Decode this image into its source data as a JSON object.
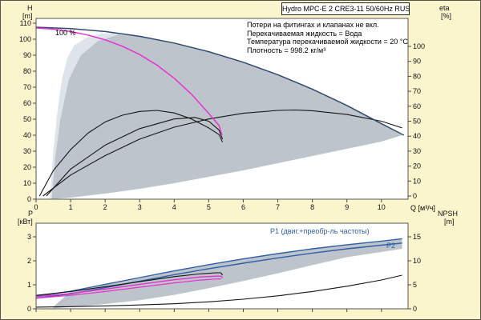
{
  "title_box": "Hydro MPC-E 2 CRE3-11 50/60Hz RUS",
  "info_lines": [
    "Потери на фитингах и клапанах не вкл.",
    "Перекачиваемая жидкость = Вода",
    "Температура перекачиваемой жидкости = 20 °C",
    "Плотность = 998.2 кг/м³"
  ],
  "annotations": {
    "speed_label": "100 %",
    "p1_label": "P1 (двиг.+преобр-ль частоты)",
    "p2_label": "P2"
  },
  "colors": {
    "background": "#fbf5ce",
    "envelope_gray": "#b3bac3",
    "envelope_pale": "#dde3ea",
    "magenta": "#e532cf",
    "navy": "#2f4a6e",
    "blue": "#2f5fa8",
    "black": "#141414"
  },
  "axes": {
    "H": {
      "name": "H",
      "unit": "[m]",
      "ticks": [
        0,
        10,
        20,
        30,
        40,
        50,
        60,
        70,
        80,
        90,
        100,
        110
      ]
    },
    "eta": {
      "name": "eta",
      "unit": "[%]",
      "ticks": [
        0,
        10,
        20,
        30,
        40,
        50,
        60,
        70,
        80,
        90,
        100
      ]
    },
    "Q": {
      "label": "Q [м³/ч]",
      "ticks": [
        0,
        1,
        2,
        3,
        4,
        5,
        6,
        7,
        8,
        9,
        10
      ]
    },
    "P": {
      "name": "P",
      "unit": "[кВт]",
      "ticks": [
        0,
        1,
        2,
        3
      ]
    },
    "NPSH": {
      "name": "NPSH",
      "unit": "[m]",
      "ticks": [
        0,
        5,
        10,
        15
      ]
    }
  },
  "chart_data": [
    {
      "id": "head-efficiency-chart",
      "type": "line",
      "x_label": "Q [м³/ч]",
      "x_range": [
        0,
        10.77
      ],
      "left_axis": {
        "label": "H [m]",
        "range": [
          0,
          113
        ]
      },
      "right_axis": {
        "label": "eta [%]",
        "range": [
          0,
          100
        ]
      },
      "series": [
        {
          "name": "duty-pale-region",
          "kind": "area",
          "axis": "H",
          "color": "#dde3ea",
          "opacity": 0.95,
          "points": [
            [
              0.4,
              0
            ],
            [
              0.5,
              30
            ],
            [
              0.62,
              55
            ],
            [
              0.75,
              75
            ],
            [
              0.9,
              88
            ],
            [
              1.1,
              96
            ],
            [
              1.45,
              101
            ],
            [
              1.9,
              103.5
            ],
            [
              2.4,
              104
            ],
            [
              2.4,
              103
            ],
            [
              1.8,
              99
            ],
            [
              1.3,
              90
            ],
            [
              0.95,
              75
            ],
            [
              0.7,
              50
            ],
            [
              0.55,
              25
            ],
            [
              0.45,
              0
            ]
          ]
        },
        {
          "name": "operating-envelope",
          "kind": "area",
          "axis": "H",
          "color": "#b3bac3",
          "opacity": 0.85,
          "points": [
            [
              0.45,
              0
            ],
            [
              0.55,
              25
            ],
            [
              0.7,
              50
            ],
            [
              0.95,
              75
            ],
            [
              1.3,
              90
            ],
            [
              1.8,
              99
            ],
            [
              2.4,
              103
            ],
            [
              3,
              101.6
            ],
            [
              4,
              97.4
            ],
            [
              5,
              92
            ],
            [
              6,
              85.4
            ],
            [
              7,
              77.6
            ],
            [
              8,
              68.6
            ],
            [
              9,
              58.4
            ],
            [
              10,
              47
            ],
            [
              10.6,
              40
            ],
            [
              10,
              36
            ],
            [
              9,
              31.5
            ],
            [
              8,
              27
            ],
            [
              7,
              22.5
            ],
            [
              6,
              18
            ],
            [
              5,
              14
            ],
            [
              4,
              10
            ],
            [
              3,
              6.5
            ],
            [
              2,
              3.5
            ],
            [
              1,
              1
            ]
          ]
        },
        {
          "name": "eta-pump-1",
          "kind": "line",
          "axis": "eta",
          "color": "#141414",
          "width": 1.1,
          "points": [
            [
              0.1,
              0
            ],
            [
              0.5,
              17
            ],
            [
              1,
              31
            ],
            [
              1.5,
              42
            ],
            [
              2,
              49.5
            ],
            [
              2.5,
              54
            ],
            [
              3,
              56.5
            ],
            [
              3.5,
              57.2
            ],
            [
              4,
              55.5
            ],
            [
              4.5,
              51.5
            ],
            [
              5,
              45.5
            ],
            [
              5.3,
              41
            ],
            [
              5.4,
              36
            ]
          ]
        },
        {
          "name": "eta-pump-1b",
          "kind": "line",
          "axis": "eta",
          "color": "#141414",
          "width": 1.1,
          "points": [
            [
              0.3,
              0
            ],
            [
              1,
              18
            ],
            [
              2,
              34
            ],
            [
              3,
              45
            ],
            [
              4,
              51.5
            ],
            [
              4.6,
              52.5
            ],
            [
              5,
              50
            ],
            [
              5.3,
              44
            ],
            [
              5.4,
              38
            ]
          ]
        },
        {
          "name": "eta-system",
          "kind": "line",
          "axis": "eta",
          "color": "#141414",
          "width": 1.1,
          "points": [
            [
              0.2,
              0
            ],
            [
              1,
              14
            ],
            [
              2,
              27
            ],
            [
              3,
              38
            ],
            [
              4,
              46
            ],
            [
              5,
              51.5
            ],
            [
              6,
              55.3
            ],
            [
              7,
              57.2
            ],
            [
              7.5,
              57.5
            ],
            [
              8,
              57
            ],
            [
              9,
              54.5
            ],
            [
              10,
              50
            ],
            [
              10.6,
              45.5
            ]
          ]
        },
        {
          "name": "max-curve-2-pumps",
          "kind": "line",
          "axis": "H",
          "color": "#2f4a6e",
          "width": 1.5,
          "points": [
            [
              0,
              107.5
            ],
            [
              1,
              106.6
            ],
            [
              2,
              104.8
            ],
            [
              3,
              101.8
            ],
            [
              4,
              97.6
            ],
            [
              5,
              92.2
            ],
            [
              6,
              85.6
            ],
            [
              7,
              77.8
            ],
            [
              8,
              68.8
            ],
            [
              9,
              58.6
            ],
            [
              10,
              47.2
            ],
            [
              10.65,
              40
            ]
          ]
        },
        {
          "name": "pump-curve-100pct",
          "kind": "line",
          "axis": "H",
          "color": "#e532cf",
          "width": 1.5,
          "points": [
            [
              0,
              107
            ],
            [
              0.5,
              106.3
            ],
            [
              1,
              104.8
            ],
            [
              1.5,
              102.6
            ],
            [
              2,
              99.6
            ],
            [
              2.5,
              95.6
            ],
            [
              3,
              90.4
            ],
            [
              3.5,
              83.8
            ],
            [
              4,
              75.6
            ],
            [
              4.5,
              65.6
            ],
            [
              5,
              53.6
            ],
            [
              5.3,
              46
            ],
            [
              5.38,
              40
            ]
          ]
        }
      ]
    },
    {
      "id": "power-npsh-chart",
      "type": "line",
      "x_label": "Q [м³/ч]",
      "x_range": [
        0,
        10.77
      ],
      "left_axis": {
        "label": "P [кВт]",
        "range": [
          0,
          3.57
        ]
      },
      "right_axis": {
        "label": "NPSH [m]",
        "range": [
          0,
          17.8
        ]
      },
      "series": [
        {
          "name": "power-pale-region",
          "kind": "area",
          "axis": "P",
          "color": "#dde3ea",
          "opacity": 0.95,
          "points": [
            [
              0.45,
              0.02
            ],
            [
              1.1,
              0.5
            ],
            [
              1.9,
              0.85
            ],
            [
              2.5,
              1.07
            ],
            [
              2.1,
              1.03
            ],
            [
              1.3,
              0.72
            ],
            [
              0.7,
              0.3
            ],
            [
              0.5,
              0.08
            ]
          ]
        },
        {
          "name": "power-envelope",
          "kind": "area",
          "axis": "P",
          "color": "#b3bac3",
          "opacity": 0.85,
          "points": [
            [
              0.5,
              0.08
            ],
            [
              1,
              0.73
            ],
            [
              2,
              1.02
            ],
            [
              3,
              1.3
            ],
            [
              4,
              1.58
            ],
            [
              5,
              1.84
            ],
            [
              6,
              2.08
            ],
            [
              7,
              2.3
            ],
            [
              8,
              2.5
            ],
            [
              9,
              2.67
            ],
            [
              10,
              2.82
            ],
            [
              10.6,
              2.9
            ],
            [
              10.6,
              2.5
            ],
            [
              9,
              2.15
            ],
            [
              8,
              1.82
            ],
            [
              7,
              1.48
            ],
            [
              6,
              1.16
            ],
            [
              5,
              0.86
            ],
            [
              4,
              0.58
            ],
            [
              3,
              0.36
            ],
            [
              2,
              0.2
            ],
            [
              1,
              0.07
            ],
            [
              0.5,
              0.02
            ]
          ]
        },
        {
          "name": "p1-total-curve",
          "kind": "line",
          "axis": "P",
          "color": "#2f5fa8",
          "width": 1.4,
          "points": [
            [
              0,
              0.52
            ],
            [
              1,
              0.73
            ],
            [
              2,
              1.02
            ],
            [
              3,
              1.3
            ],
            [
              4,
              1.58
            ],
            [
              5,
              1.84
            ],
            [
              6,
              2.08
            ],
            [
              7,
              2.3
            ],
            [
              8,
              2.5
            ],
            [
              9,
              2.67
            ],
            [
              10,
              2.82
            ],
            [
              10.6,
              2.92
            ]
          ]
        },
        {
          "name": "p2-shaft-curve",
          "kind": "line",
          "axis": "P",
          "color": "#2f5fa8",
          "width": 1.4,
          "points": [
            [
              0,
              0.44
            ],
            [
              1,
              0.62
            ],
            [
              2,
              0.88
            ],
            [
              3,
              1.15
            ],
            [
              4,
              1.42
            ],
            [
              5,
              1.67
            ],
            [
              6,
              1.9
            ],
            [
              7,
              2.12
            ],
            [
              8,
              2.32
            ],
            [
              9,
              2.5
            ],
            [
              10,
              2.65
            ],
            [
              10.6,
              2.74
            ]
          ]
        },
        {
          "name": "p-single-pump-black",
          "kind": "line",
          "axis": "P",
          "color": "#141414",
          "width": 1.1,
          "points": [
            [
              0,
              0.56
            ],
            [
              1,
              0.72
            ],
            [
              2,
              0.92
            ],
            [
              3,
              1.13
            ],
            [
              4,
              1.34
            ],
            [
              4.7,
              1.45
            ],
            [
              5.2,
              1.5
            ],
            [
              5.35,
              1.5
            ],
            [
              5.4,
              1.4
            ]
          ]
        },
        {
          "name": "p-pump-100pct-a",
          "kind": "line",
          "axis": "P",
          "color": "#e532cf",
          "width": 1.4,
          "points": [
            [
              0,
              0.5
            ],
            [
              1,
              0.64
            ],
            [
              2,
              0.82
            ],
            [
              3,
              1.02
            ],
            [
              4,
              1.21
            ],
            [
              4.7,
              1.32
            ],
            [
              5.2,
              1.36
            ],
            [
              5.35,
              1.36
            ],
            [
              5.4,
              1.28
            ]
          ]
        },
        {
          "name": "p-pump-100pct-b",
          "kind": "line",
          "axis": "P",
          "color": "#e532cf",
          "width": 1.2,
          "points": [
            [
              0,
              0.44
            ],
            [
              1,
              0.56
            ],
            [
              2,
              0.72
            ],
            [
              3,
              0.9
            ],
            [
              4,
              1.08
            ],
            [
              4.7,
              1.19
            ],
            [
              5.2,
              1.24
            ],
            [
              5.35,
              1.25
            ]
          ]
        },
        {
          "name": "npsh-curve",
          "kind": "line",
          "axis": "NPSH",
          "color": "#141414",
          "width": 1.1,
          "points": [
            [
              0,
              0.35
            ],
            [
              1,
              0.45
            ],
            [
              2,
              0.6
            ],
            [
              3,
              0.8
            ],
            [
              4,
              1.05
            ],
            [
              5,
              1.45
            ],
            [
              6,
              2.0
            ],
            [
              7,
              2.7
            ],
            [
              8,
              3.6
            ],
            [
              9,
              4.7
            ],
            [
              10,
              6.0
            ],
            [
              10.6,
              7.0
            ]
          ]
        }
      ]
    }
  ]
}
